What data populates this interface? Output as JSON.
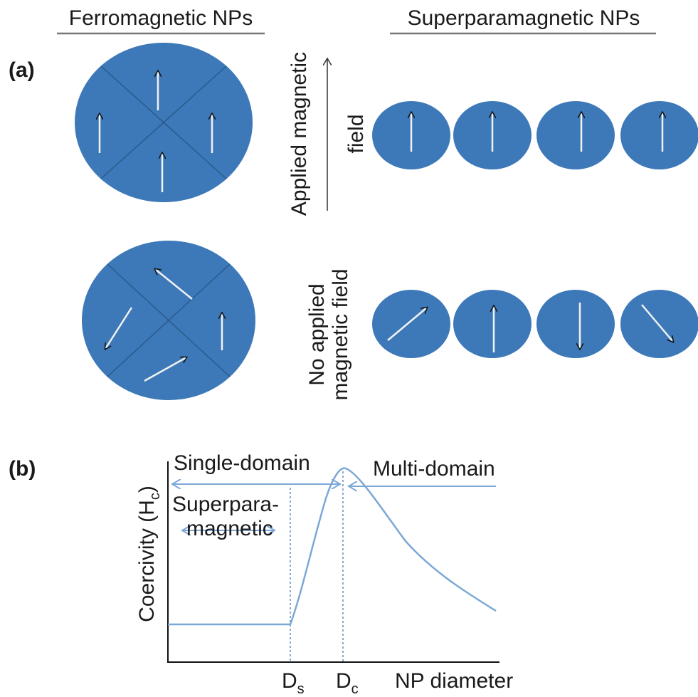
{
  "header": {
    "left_title": "Ferromagnetic NPs",
    "right_title": "Superparamagnetic NPs"
  },
  "panel_a": {
    "label": "(a)",
    "applied_field": [
      "Applied magnetic",
      "field"
    ],
    "no_field": [
      "No applied",
      "magnetic field"
    ]
  },
  "panel_b": {
    "label": "(b)",
    "single_domain": "Single-domain",
    "multi_domain": "Multi-domain",
    "superparamagnetic": [
      "Superpara-",
      "magnetic"
    ],
    "y_axis": {
      "text": "Coercivity (H",
      "sub": "c",
      "tail": ")"
    },
    "ds": {
      "text": "D",
      "sub": "s"
    },
    "dc": {
      "text": "D",
      "sub": "c"
    },
    "x_axis": "NP diameter"
  }
}
